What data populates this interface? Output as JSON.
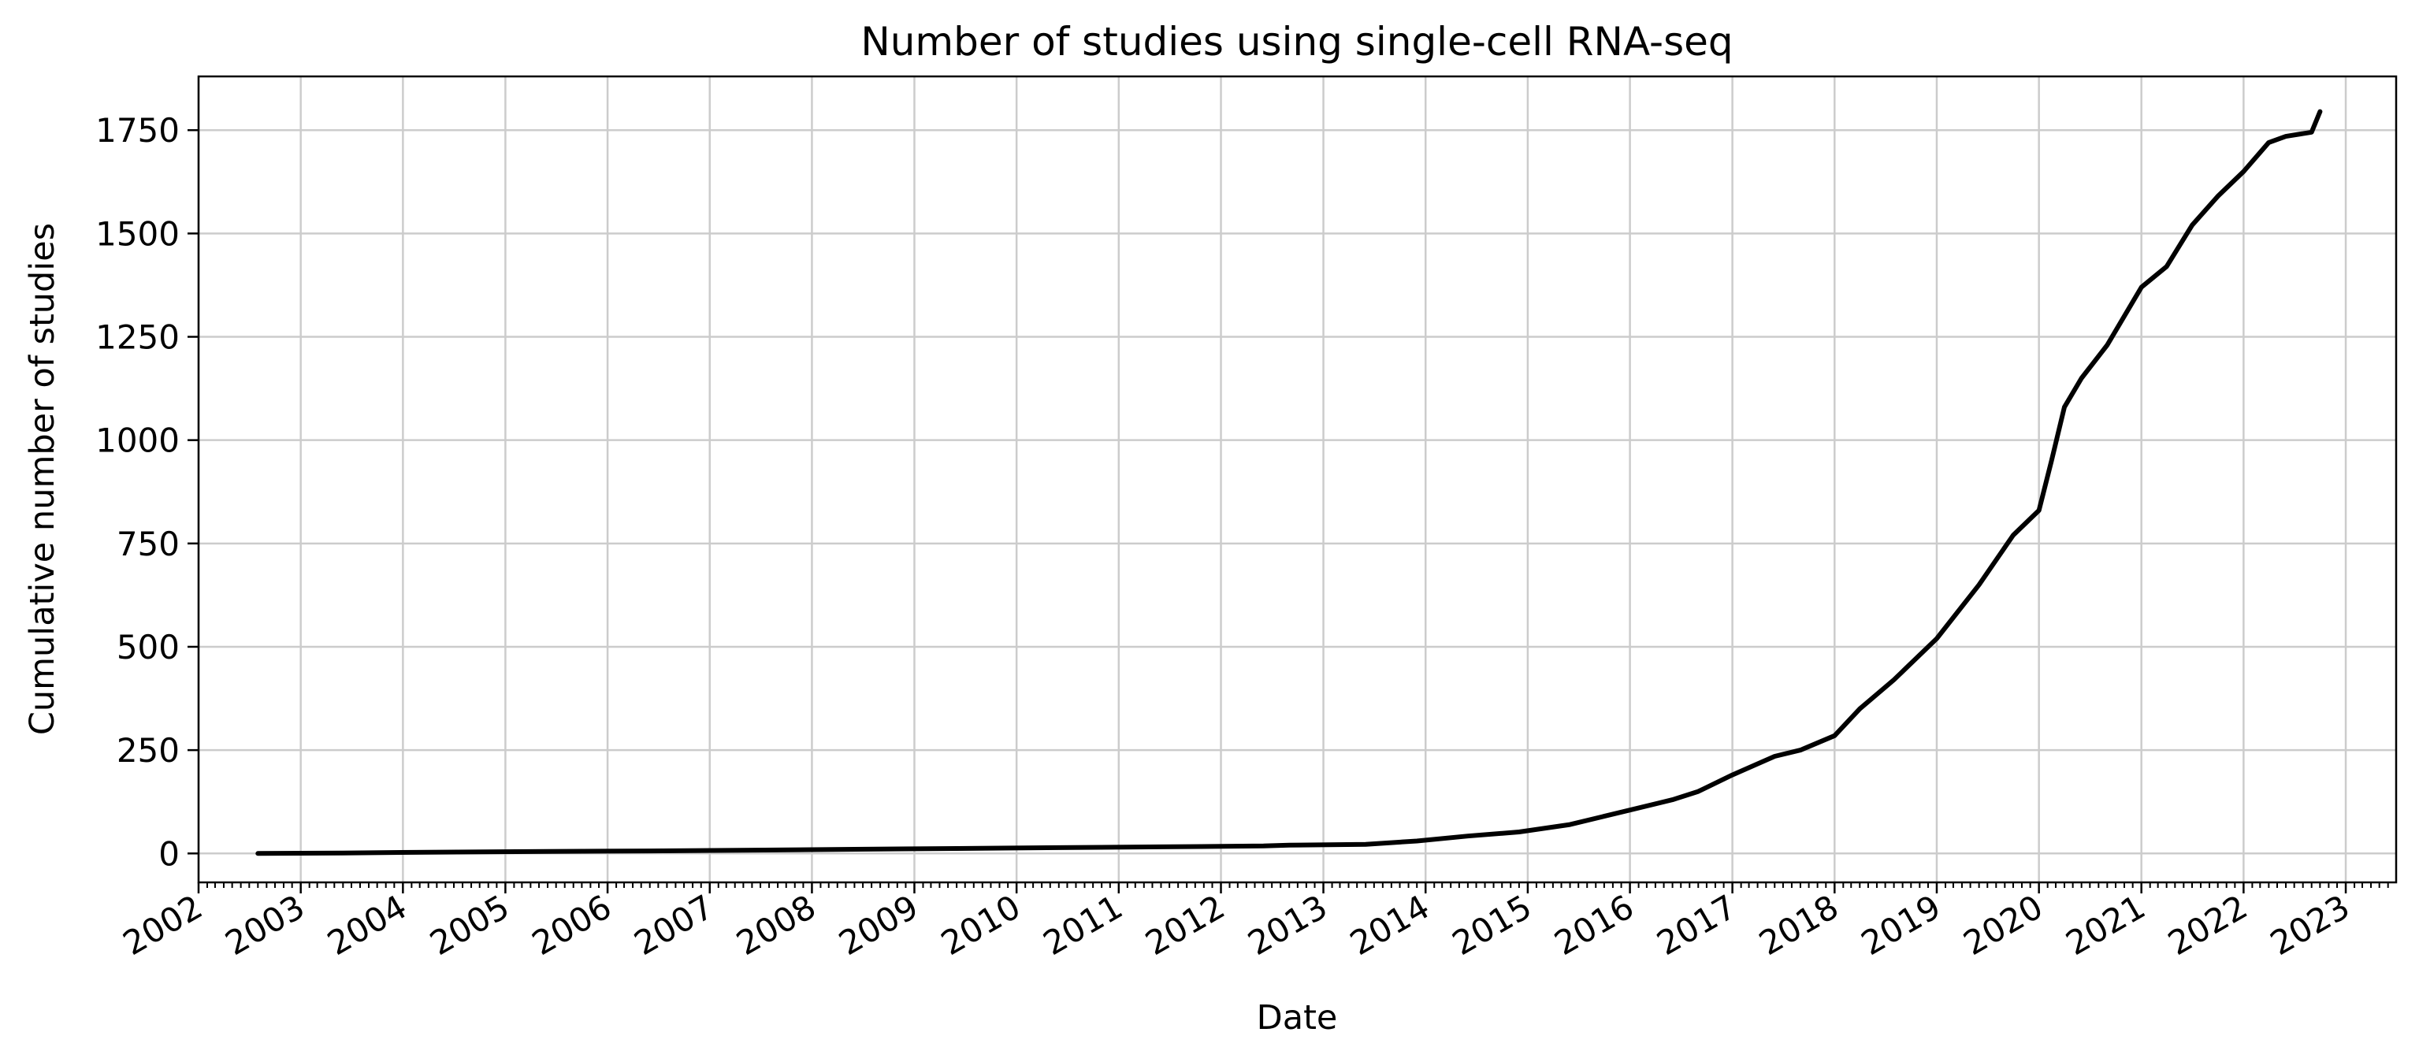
{
  "chart_data": {
    "type": "line",
    "title": "Number of studies using single-cell RNA-seq",
    "xlabel": "Date",
    "ylabel": "Cumulative number of studies",
    "x_axis_kind": "date",
    "xlim": [
      "2002-01-01",
      "2023-06-30"
    ],
    "ylim": [
      -70,
      1880
    ],
    "x_ticks": [
      "2002",
      "2003",
      "2004",
      "2005",
      "2006",
      "2007",
      "2008",
      "2009",
      "2010",
      "2011",
      "2012",
      "2013",
      "2014",
      "2015",
      "2016",
      "2017",
      "2018",
      "2019",
      "2020",
      "2021",
      "2022",
      "2023"
    ],
    "y_ticks": [
      0,
      250,
      500,
      750,
      1000,
      1250,
      1500,
      1750
    ],
    "grid": true,
    "line_color": "#000000",
    "grid_color": "#cccccc",
    "series": [
      {
        "x": [
          "2002-08-01",
          "2003-06-01",
          "2004-04-01",
          "2005-06-01",
          "2006-06-01",
          "2007-06-01",
          "2008-06-01",
          "2009-06-01",
          "2010-06-01",
          "2011-06-01",
          "2012-06-01",
          "2012-09-01",
          "2013-06-01",
          "2013-12-01",
          "2014-06-01",
          "2014-12-01",
          "2015-06-01",
          "2015-10-01",
          "2016-01-01",
          "2016-06-01",
          "2016-09-01",
          "2017-01-01",
          "2017-06-01",
          "2017-09-01",
          "2018-01-01",
          "2018-04-01",
          "2018-08-01",
          "2019-01-01",
          "2019-06-01",
          "2019-10-01",
          "2020-01-01",
          "2020-02-15",
          "2020-04-01",
          "2020-06-01",
          "2020-09-01",
          "2021-01-01",
          "2021-04-01",
          "2021-07-01",
          "2021-10-01",
          "2022-01-01",
          "2022-04-01",
          "2022-06-01",
          "2022-09-01",
          "2022-10-01"
        ],
        "y": [
          0,
          1,
          3,
          5,
          6,
          8,
          10,
          12,
          14,
          16,
          18,
          20,
          22,
          30,
          42,
          52,
          70,
          90,
          105,
          130,
          150,
          190,
          235,
          250,
          285,
          350,
          420,
          520,
          650,
          770,
          830,
          950,
          1080,
          1150,
          1230,
          1370,
          1420,
          1520,
          1590,
          1650,
          1720,
          1735,
          1745,
          1795
        ]
      }
    ]
  }
}
